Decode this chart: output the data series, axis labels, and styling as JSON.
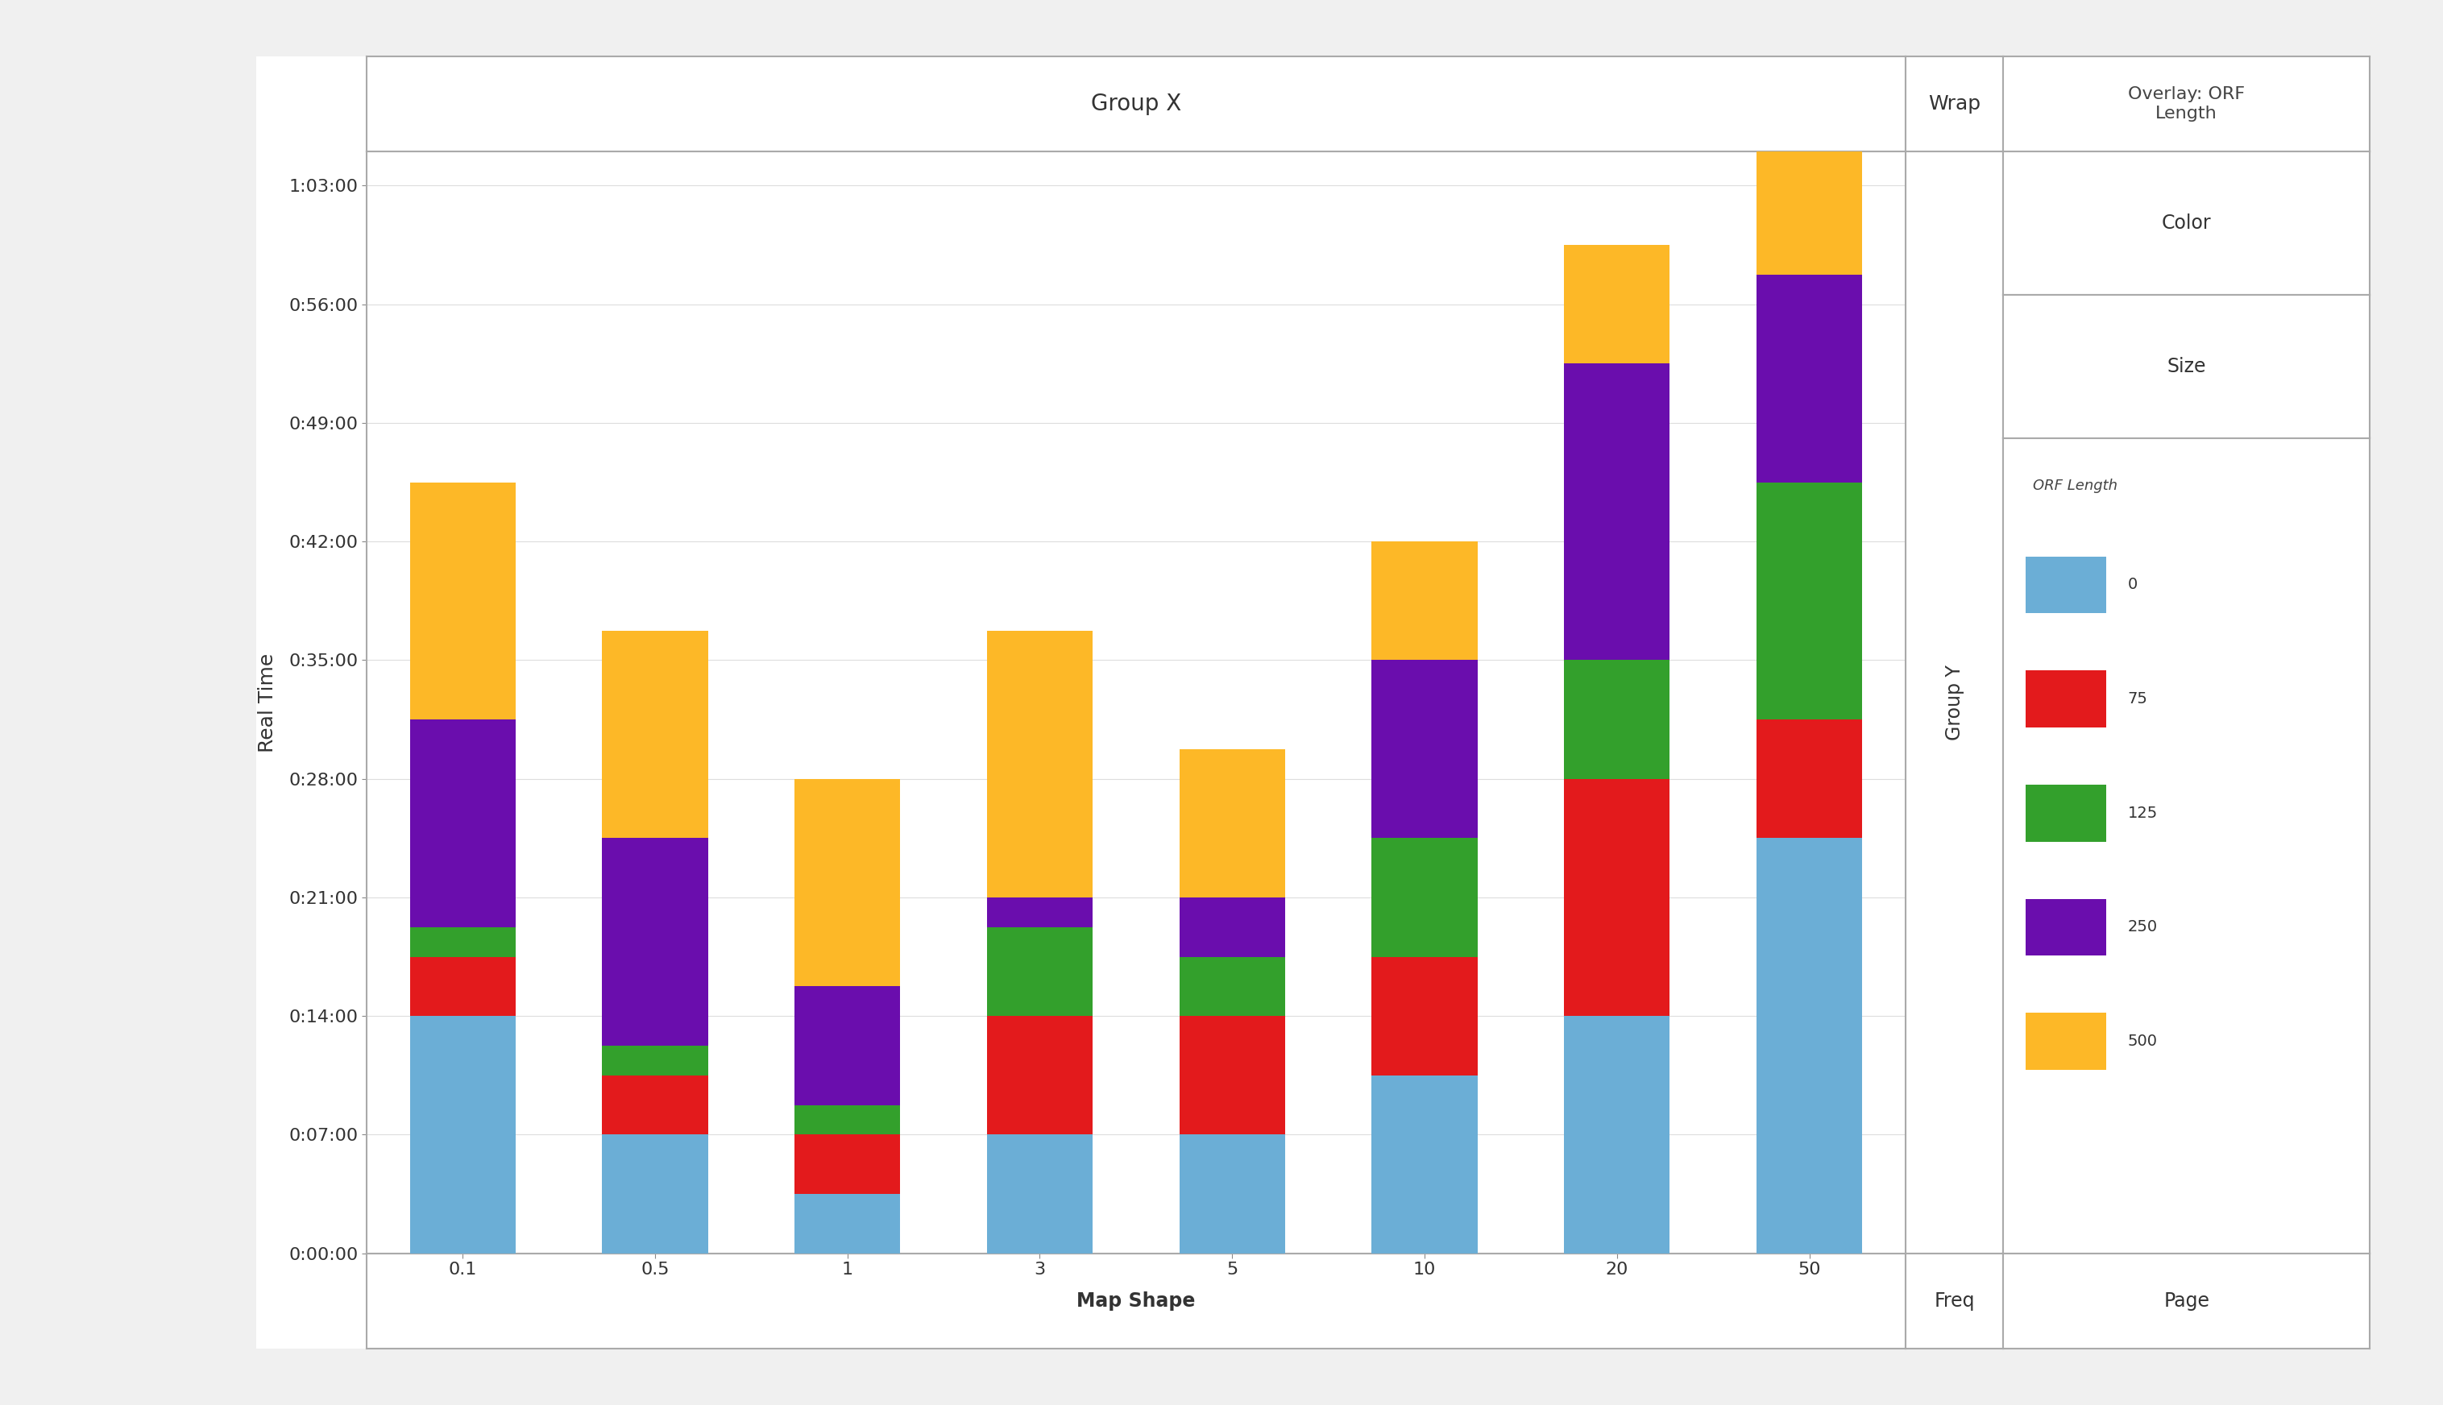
{
  "categories": [
    "0.1",
    "0.5",
    "1",
    "3",
    "5",
    "10",
    "20",
    "50"
  ],
  "orf_lengths": [
    "0",
    "75",
    "125",
    "250",
    "500"
  ],
  "colors": {
    "0": "#6BAED6",
    "75": "#E31A1C",
    "125": "#33A02C",
    "250": "#6A0DAD",
    "500": "#FDB827"
  },
  "data": {
    "0": [
      840,
      420,
      210,
      420,
      420,
      630,
      840,
      1470
    ],
    "75": [
      210,
      210,
      210,
      420,
      420,
      420,
      840,
      420
    ],
    "125": [
      105,
      105,
      105,
      315,
      210,
      420,
      420,
      840
    ],
    "250": [
      735,
      735,
      420,
      105,
      210,
      630,
      1050,
      735
    ],
    "500": [
      840,
      735,
      735,
      945,
      525,
      420,
      420,
      840
    ]
  },
  "yticks_seconds": [
    0,
    420,
    840,
    1260,
    1680,
    2100,
    2520,
    2940,
    3360,
    3780
  ],
  "ytick_labels": [
    "0:00:00",
    "0:07:00",
    "0:14:00",
    "0:21:00",
    "0:28:00",
    "0:35:00",
    "0:42:00",
    "0:49:00",
    "0:56:00",
    "1:03:00"
  ],
  "ylabel": "Real Time",
  "xlabel_main": "Freq",
  "group_x_label": "Group X",
  "wrap_label": "Wrap",
  "overlay_label": "Overlay: ORF\nLength",
  "color_label": "Color",
  "size_label": "Size",
  "group_y_label": "Group Y",
  "map_shape_label": "Map Shape",
  "page_label": "Page",
  "background_color": "#F0F0F0",
  "plot_bg": "#FFFFFF",
  "border_color": "#AAAAAA",
  "panel_bg": "#FFFFFF"
}
